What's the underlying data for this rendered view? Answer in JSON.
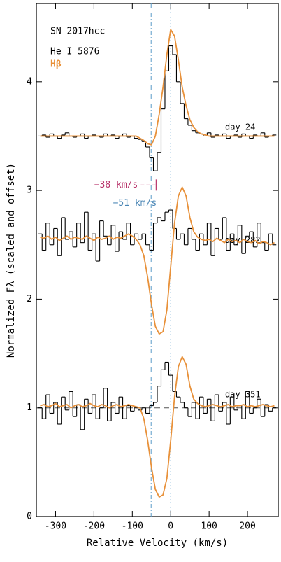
{
  "chart_data": {
    "type": "line",
    "title": "SN 2017hcc",
    "xlabel": "Relative Velocity (km/s)",
    "ylabel": "Normalized Fλ (scaled and offset)",
    "xlim": [
      -350,
      280
    ],
    "ylim": [
      0,
      4.72
    ],
    "xticks": [
      -300,
      -200,
      -100,
      0,
      100,
      200
    ],
    "yticks": [
      0,
      1,
      2,
      3,
      4
    ],
    "x": [
      -340,
      -330,
      -320,
      -310,
      -300,
      -290,
      -280,
      -270,
      -260,
      -250,
      -240,
      -230,
      -220,
      -210,
      -200,
      -190,
      -180,
      -170,
      -160,
      -150,
      -140,
      -130,
      -120,
      -110,
      -100,
      -90,
      -80,
      -70,
      -60,
      -50,
      -40,
      -30,
      -20,
      -10,
      0,
      10,
      20,
      30,
      40,
      50,
      60,
      70,
      80,
      90,
      100,
      110,
      120,
      130,
      140,
      150,
      160,
      170,
      180,
      190,
      200,
      210,
      220,
      230,
      240,
      250,
      260,
      270
    ],
    "series": [
      {
        "name": "He I 5876",
        "color": "#000000",
        "step": true,
        "epochs": [
          {
            "label": "day  24",
            "values": [
              3.5,
              3.51,
              3.49,
              3.52,
              3.5,
              3.48,
              3.51,
              3.53,
              3.5,
              3.49,
              3.5,
              3.52,
              3.48,
              3.5,
              3.51,
              3.5,
              3.49,
              3.52,
              3.5,
              3.51,
              3.48,
              3.5,
              3.52,
              3.49,
              3.5,
              3.48,
              3.47,
              3.45,
              3.4,
              3.3,
              3.18,
              3.35,
              3.75,
              4.1,
              4.33,
              4.25,
              4.0,
              3.8,
              3.66,
              3.6,
              3.55,
              3.53,
              3.52,
              3.5,
              3.53,
              3.49,
              3.51,
              3.5,
              3.52,
              3.48,
              3.5,
              3.51,
              3.49,
              3.52,
              3.5,
              3.48,
              3.51,
              3.5,
              3.53,
              3.49,
              3.5,
              3.51
            ]
          },
          {
            "label": "day 282",
            "values": [
              2.6,
              2.45,
              2.7,
              2.5,
              2.65,
              2.4,
              2.75,
              2.55,
              2.62,
              2.48,
              2.7,
              2.52,
              2.8,
              2.45,
              2.6,
              2.35,
              2.72,
              2.58,
              2.5,
              2.68,
              2.44,
              2.62,
              2.55,
              2.7,
              2.5,
              2.6,
              2.55,
              2.6,
              2.5,
              2.45,
              2.7,
              2.75,
              2.72,
              2.8,
              2.82,
              2.65,
              2.55,
              2.6,
              2.5,
              2.65,
              2.55,
              2.45,
              2.6,
              2.5,
              2.7,
              2.4,
              2.65,
              2.55,
              2.75,
              2.45,
              2.6,
              2.5,
              2.68,
              2.42,
              2.58,
              2.62,
              2.48,
              2.7,
              2.52,
              2.45,
              2.6,
              2.5
            ]
          },
          {
            "label": "day 351",
            "values": [
              1.0,
              0.9,
              1.12,
              0.95,
              1.05,
              0.85,
              1.1,
              0.98,
              1.15,
              0.92,
              1.03,
              0.8,
              1.08,
              0.95,
              1.12,
              0.9,
              1.0,
              1.18,
              0.88,
              1.05,
              0.95,
              1.1,
              0.9,
              1.02,
              0.97,
              1.0,
              0.98,
              1.0,
              0.95,
              1.02,
              1.05,
              1.2,
              1.35,
              1.42,
              1.3,
              1.15,
              1.1,
              1.05,
              1.0,
              0.92,
              1.05,
              0.9,
              1.1,
              0.95,
              1.08,
              0.88,
              1.12,
              0.97,
              1.05,
              0.85,
              1.1,
              0.98,
              1.02,
              0.9,
              1.15,
              0.95,
              1.0,
              1.08,
              0.92,
              1.03,
              0.97,
              1.0
            ]
          }
        ]
      },
      {
        "name": "Hβ",
        "color": "#e8913a",
        "step": false,
        "epochs": [
          {
            "values": [
              3.5,
              3.5,
              3.5,
              3.5,
              3.5,
              3.5,
              3.5,
              3.5,
              3.5,
              3.5,
              3.5,
              3.5,
              3.5,
              3.5,
              3.5,
              3.5,
              3.5,
              3.5,
              3.5,
              3.5,
              3.5,
              3.5,
              3.5,
              3.5,
              3.5,
              3.5,
              3.48,
              3.46,
              3.43,
              3.42,
              3.5,
              3.7,
              3.95,
              4.25,
              4.48,
              4.42,
              4.2,
              3.95,
              3.78,
              3.65,
              3.58,
              3.54,
              3.52,
              3.51,
              3.5,
              3.5,
              3.5,
              3.5,
              3.5,
              3.5,
              3.5,
              3.5,
              3.5,
              3.5,
              3.5,
              3.5,
              3.5,
              3.5,
              3.5,
              3.5,
              3.5,
              3.5
            ]
          },
          {
            "values": [
              2.57,
              2.56,
              2.58,
              2.55,
              2.57,
              2.54,
              2.56,
              2.58,
              2.55,
              2.57,
              2.56,
              2.55,
              2.58,
              2.56,
              2.54,
              2.57,
              2.55,
              2.56,
              2.58,
              2.55,
              2.57,
              2.56,
              2.58,
              2.6,
              2.58,
              2.55,
              2.5,
              2.4,
              2.2,
              1.95,
              1.75,
              1.68,
              1.7,
              1.9,
              2.3,
              2.7,
              2.95,
              3.03,
              2.95,
              2.75,
              2.62,
              2.57,
              2.55,
              2.54,
              2.55,
              2.53,
              2.56,
              2.54,
              2.52,
              2.55,
              2.53,
              2.54,
              2.52,
              2.55,
              2.53,
              2.52,
              2.54,
              2.51,
              2.53,
              2.52,
              2.5,
              2.52
            ]
          },
          {
            "values": [
              1.02,
              1.03,
              1.01,
              1.02,
              1.04,
              1.01,
              1.02,
              1.03,
              1.0,
              1.02,
              1.03,
              1.01,
              1.02,
              1.04,
              1.02,
              1.01,
              1.03,
              1.02,
              1.0,
              1.02,
              1.03,
              1.01,
              1.02,
              1.03,
              1.02,
              1.01,
              1.0,
              0.9,
              0.7,
              0.45,
              0.25,
              0.18,
              0.2,
              0.35,
              0.7,
              1.1,
              1.38,
              1.47,
              1.4,
              1.2,
              1.08,
              1.04,
              1.02,
              1.01,
              1.02,
              1.03,
              1.02,
              1.01,
              1.02,
              1.03,
              1.01,
              1.02,
              1.02,
              1.03,
              1.01,
              1.02,
              1.01,
              1.02,
              1.03,
              1.02,
              1.01,
              1.02
            ]
          }
        ]
      }
    ],
    "vlines": [
      {
        "x": -51,
        "style": "dashdot",
        "color": "#5b9bc9"
      },
      {
        "x": 0,
        "style": "dotted",
        "color": "#5b9bc9"
      }
    ],
    "hlines": [
      {
        "y": 1,
        "style": "dashed",
        "color": "#555555"
      }
    ],
    "annotations": [
      {
        "text": "−38 km/s",
        "x": -38,
        "y": 3.05,
        "color": "#b8336a"
      },
      {
        "text": "−51 km/s",
        "x": -51,
        "y": 2.88,
        "color": "#4a86b5"
      }
    ]
  }
}
